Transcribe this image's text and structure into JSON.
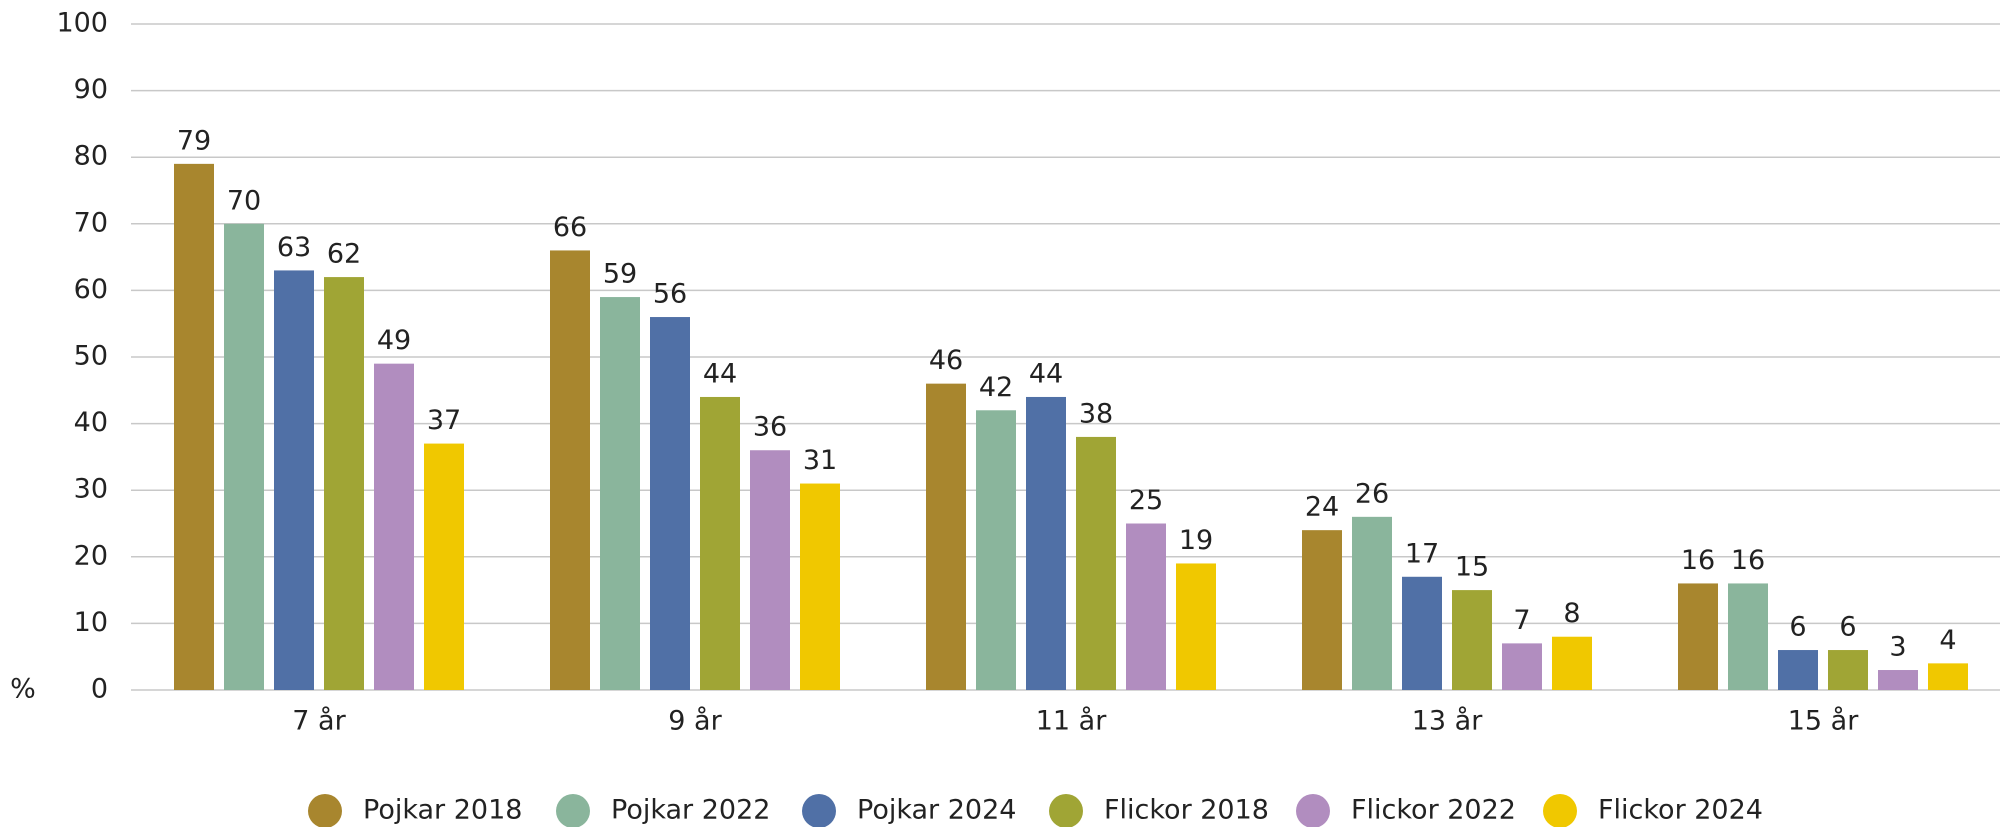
{
  "chart_data": {
    "type": "bar",
    "ylabel": "%",
    "categories": [
      "7 år",
      "9 år",
      "11 år",
      "13 år",
      "15 år"
    ],
    "series": [
      {
        "name": "Pojkar 2018",
        "color": "#a8862e",
        "values": [
          79,
          66,
          46,
          24,
          16
        ]
      },
      {
        "name": "Pojkar 2022",
        "color": "#8ab59c",
        "values": [
          70,
          59,
          42,
          26,
          16
        ]
      },
      {
        "name": "Pojkar 2024",
        "color": "#5070a6",
        "values": [
          63,
          56,
          44,
          17,
          6
        ]
      },
      {
        "name": "Flickor 2018",
        "color": "#a0a535",
        "values": [
          62,
          44,
          38,
          15,
          6
        ]
      },
      {
        "name": "Flickor 2022",
        "color": "#b18dbf",
        "values": [
          49,
          36,
          25,
          7,
          3
        ]
      },
      {
        "name": "Flickor 2024",
        "color": "#f0c800",
        "values": [
          37,
          31,
          19,
          8,
          4
        ]
      }
    ],
    "ylim": [
      0,
      100
    ],
    "yticks": [
      0,
      10,
      20,
      30,
      40,
      50,
      60,
      70,
      80,
      90,
      100
    ],
    "grid": true,
    "legend": "bottom"
  }
}
